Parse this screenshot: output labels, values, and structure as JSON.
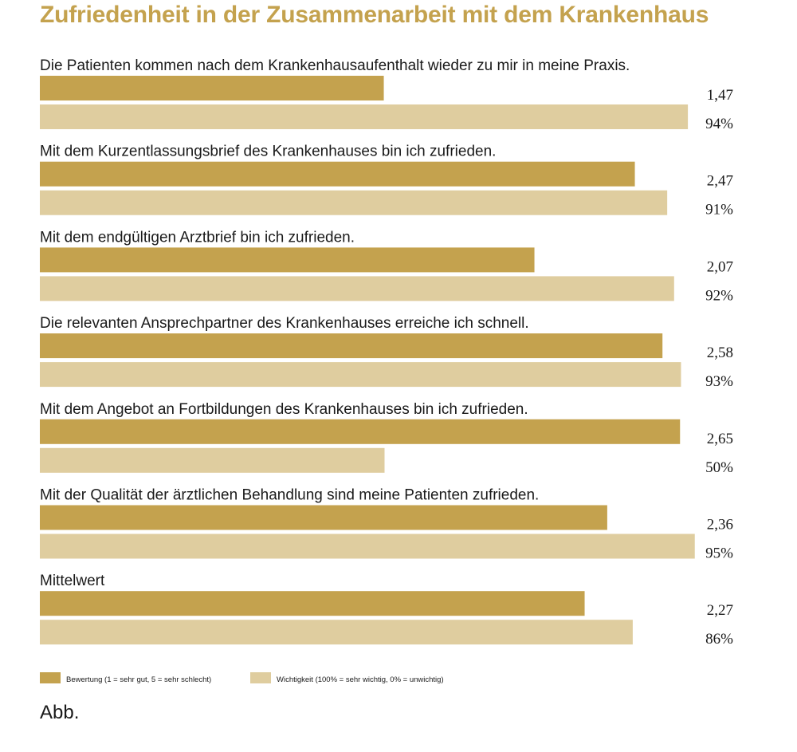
{
  "title": "Zufriedenheit in der Zusammenarbeit mit dem Krankenhaus",
  "caption": "Abb.",
  "colors": {
    "rating": "#c4a24e",
    "importance": "#dfcd9f",
    "title": "#c4a24e"
  },
  "chart_data": {
    "type": "bar",
    "orientation": "horizontal",
    "title": "Zufriedenheit in der Zusammenarbeit mit dem Krankenhaus",
    "categories": [
      "Die Patienten kommen nach dem Krankenhausaufenthalt wieder zu mir in meine Praxis.",
      "Mit dem Kurzentlassungsbrief des Krankenhauses bin ich zufrieden.",
      "Mit dem endgültigen Arztbrief bin ich zufrieden.",
      "Die relevanten Ansprechpartner des Krankenhauses erreiche ich schnell.",
      "Mit dem Angebot an Fortbildungen des Krankenhauses bin ich zufrieden.",
      "Mit der Qualität der ärztlichen Behandlung sind meine Patienten zufrieden.",
      "Mittelwert"
    ],
    "series": [
      {
        "name": "Bewertung (1 = sehr gut, 5 = sehr schlecht)",
        "values": [
          1.47,
          2.47,
          2.07,
          2.58,
          2.65,
          2.36,
          2.27
        ],
        "labels": [
          "1,47",
          "2,47",
          "2,07",
          "2,58",
          "2,65",
          "2,36",
          "2,27"
        ]
      },
      {
        "name": "Wichtigkeit (100% = sehr wichtig, 0% = unwichtig)",
        "values": [
          94,
          91,
          92,
          93,
          50,
          95,
          86
        ],
        "labels": [
          "94%",
          "91%",
          "92%",
          "93%",
          "50%",
          "95%",
          "86%"
        ]
      }
    ],
    "legend_position": "bottom-left",
    "grid": false
  }
}
